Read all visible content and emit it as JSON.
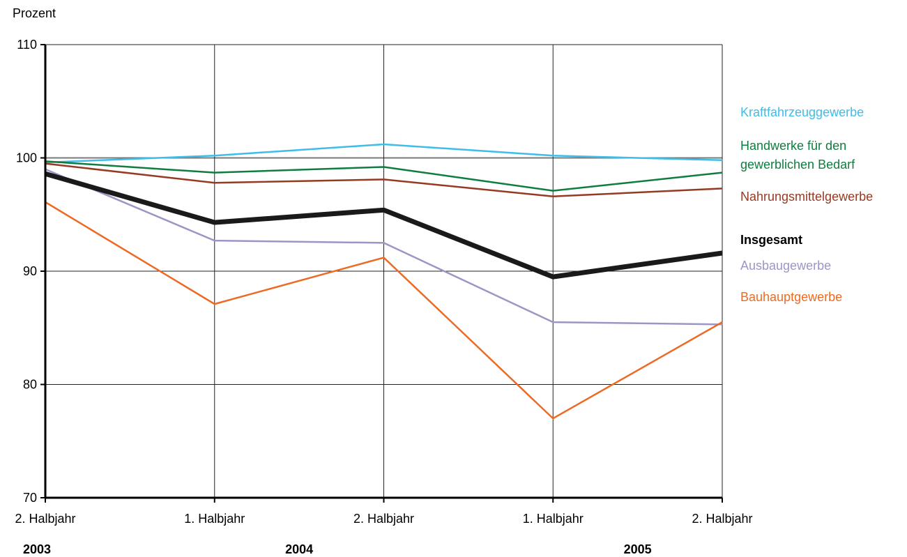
{
  "chart_data": {
    "type": "line",
    "ylabel": "Prozent",
    "ylim": [
      70,
      110
    ],
    "yticks": [
      70,
      80,
      90,
      100,
      110
    ],
    "categories": [
      "2. Halbjahr",
      "1. Halbjahr",
      "2. Halbjahr",
      "1. Halbjahr",
      "2. Halbjahr"
    ],
    "years": [
      {
        "label": "2003",
        "position": 0
      },
      {
        "label": "2004",
        "position": 1.5
      },
      {
        "label": "2005",
        "position": 3.5
      }
    ],
    "grid": true,
    "reference_line": 100,
    "legend_placement": "right",
    "series": [
      {
        "name": "Kraftfahrzeuggewerbe",
        "color": "#3dbde8",
        "width": 2.5,
        "values": [
          99.6,
          100.2,
          101.2,
          100.2,
          99.8
        ]
      },
      {
        "name": "Handwerke für den gewerblichen Bedarf",
        "color": "#0e7d3f",
        "width": 2.5,
        "values": [
          99.7,
          98.7,
          99.2,
          97.1,
          98.7
        ]
      },
      {
        "name": "Nahrungsmittelgewerbe",
        "color": "#953a23",
        "width": 2.5,
        "values": [
          99.5,
          97.8,
          98.1,
          96.6,
          97.3
        ]
      },
      {
        "name": "Insgesamt",
        "color": "#1a1a1a",
        "width": 7,
        "bold": true,
        "values": [
          98.6,
          94.3,
          95.4,
          89.5,
          91.6
        ]
      },
      {
        "name": "Ausbaugewerbe",
        "color": "#9a97c6",
        "width": 2.5,
        "values": [
          99.0,
          92.7,
          92.5,
          85.5,
          85.3
        ]
      },
      {
        "name": "Bauhauptgewerbe",
        "color": "#ec6b24",
        "width": 2.5,
        "values": [
          96.1,
          87.1,
          91.2,
          77.0,
          85.5
        ]
      }
    ],
    "legend_lines": [
      {
        "series": 0,
        "lines": [
          "Kraftfahrzeuggewerbe"
        ]
      },
      {
        "series": 1,
        "lines": [
          "Handwerke für den",
          "gewerblichen Bedarf"
        ]
      },
      {
        "series": 2,
        "lines": [
          "Nahrungsmittelgewerbe"
        ]
      },
      {
        "series": 3,
        "lines": [
          "Insgesamt"
        ]
      },
      {
        "series": 4,
        "lines": [
          "Ausbaugewerbe"
        ]
      },
      {
        "series": 5,
        "lines": [
          "Bauhauptgewerbe"
        ]
      }
    ]
  }
}
